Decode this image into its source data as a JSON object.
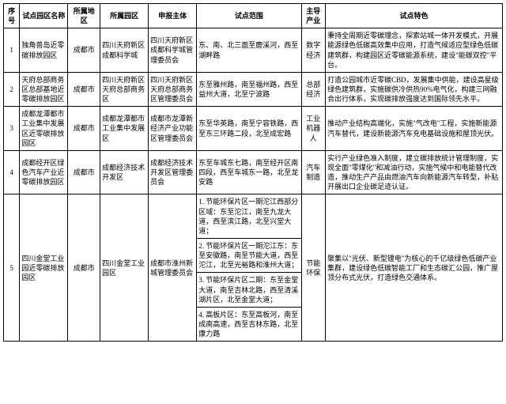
{
  "headers": {
    "num": "序号",
    "name": "试点园区名称",
    "region": "所属地区",
    "park": "所属园区",
    "applicant": "申报主体",
    "scope": "试点范围",
    "industry": "主导产业",
    "feature": "试点特色"
  },
  "rows": [
    {
      "num": "1",
      "name": "独角兽岛近零碳排放园区",
      "region": "成都市",
      "park": "四川天府新区成都科学城",
      "applicant": "四川天府新区成都科学城管理委员会",
      "scope": "东、南、北三面至鹿溪河，西至湖畔路",
      "industry": "数字经济",
      "feature": "秉持全周期近零碳理念，探索站城一体开发模式，开展能源绿色低碳高效集中应用，打造气候适应型绿色低碳建筑群，构建园区近零碳能源系统，建设\"能碳双控\"平台。"
    },
    {
      "num": "2",
      "name": "天府总部商务区总部基地近零碳排放园区",
      "region": "成都市",
      "park": "四川天府新区天府总部商务区",
      "applicant": "四川天府新区天府总部商务区管理委员会",
      "scope": "东至雅州路，南至福州路，西至益州大道，北至宁波路",
      "industry": "总部经济",
      "feature": "打造公园城市近零碳CBD，发展集中供能，建设高星级绿色建筑群，实施碳供冷供热90%电气化，构建三网融合出行体系，实现碳排放强度达到国际领先水平。"
    },
    {
      "num": "3",
      "name": "成都龙潭都市工业集中发展区近零碳排放园区",
      "region": "成都市",
      "park": "成都龙潭都市工业集中发展区",
      "applicant": "成都市龙潭新经济产业功能区管理委员会",
      "scope": "东至华英路，南至宁容铁路，西至东三环路二段，北至成宏路",
      "industry": "工业机器人",
      "feature": "推动产业结构高端化，实施\"气改电\"工程，实施新能源汽车替代，建设新能源汽车充电基础设施和屋顶光伏。"
    },
    {
      "num": "4",
      "name": "成都经开区绿色汽车产业近零碳排放园区",
      "region": "成都市",
      "park": "成都经济技术开发区",
      "applicant": "成都经济技术开发区管理委员会",
      "scope": "东至车城东七路，南至经开区南四段，西至车城东一路，北至龙安路",
      "industry": "汽车制造",
      "feature": "实行产业绿色准入制度，建立碳排放统计管理制度，实现全面\"零煤化\"和减油行动，实施气候中和电能替代改造，推动生产产品由燃油汽车向新能源汽车转型，补贴开展出口企业碳足迹认证。"
    },
    {
      "num": "5",
      "name": "四川金堂工业园近零碳排放园区",
      "region": "成都市",
      "park": "四川金堂工业园区",
      "applicant": "成都市淮州新城管理委员会",
      "scope_items": [
        "1. 节能环保片区一期沱江西部分区域：东至沱江，南至九龙大道，西至滨江路，北至兴堂大道；",
        "2. 节能环保片区一期沱江东：东至安徽路，南至节能大道，西至沱江，北至光裕路和淮州大道；",
        "3. 节能环保片区二期：东至金堂大道，南至吉林北路，西至清溪湖片区，北至金堂大道；",
        "4. 高板片区：东至高板河，南至成南高速，西至吉林东路，北至康力路"
      ],
      "industry": "节能环保",
      "feature": "聚集以\"光伏、新型锂电\"为核心的千亿级绿色低碳产业集群，建设绿色低碳智能工厂和生态碳汇公园，推广屋顶分布式光伏，打造绿色交通体系。"
    }
  ]
}
